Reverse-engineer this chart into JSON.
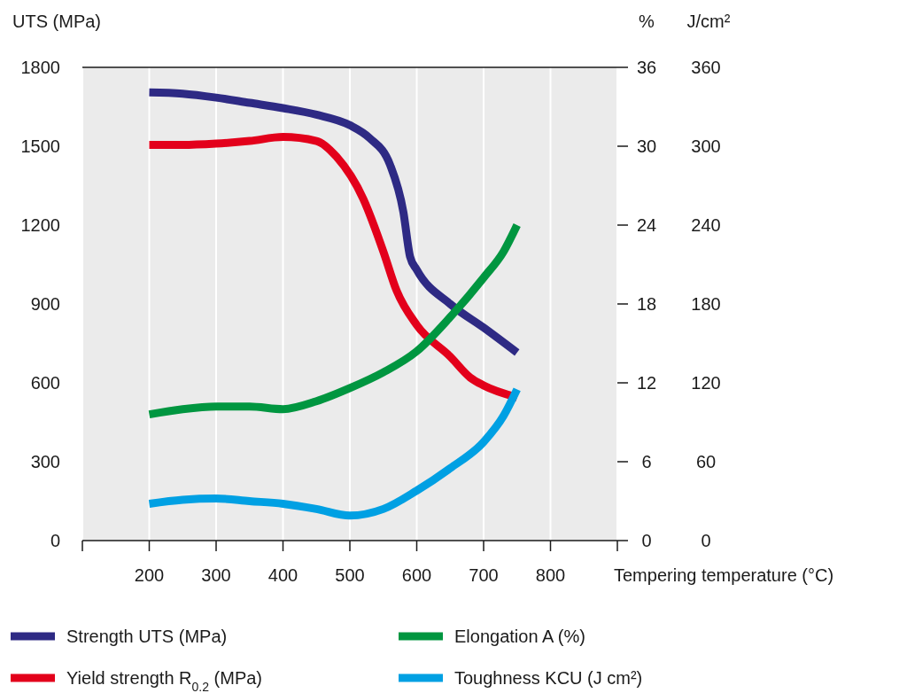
{
  "chart_data": {
    "type": "line",
    "xlabel": "Tempering temperature (°C)",
    "ylabel": "UTS (MPa)",
    "y2label": "%",
    "y3label": "J/cm²",
    "xlim": [
      100,
      900
    ],
    "xticks": [
      {
        "value": 100,
        "label": null
      },
      200,
      300,
      400,
      500,
      600,
      700,
      800,
      {
        "value": 900,
        "label": null
      }
    ],
    "ylim": [
      0,
      1800
    ],
    "yticks": [
      0,
      300,
      600,
      900,
      1200,
      1500,
      1800
    ],
    "y2lim": [
      0,
      36
    ],
    "y2ticks": [
      0,
      6,
      12,
      18,
      24,
      30,
      36
    ],
    "y3lim": [
      0,
      360
    ],
    "y3ticks": [
      0,
      60,
      120,
      180,
      240,
      300,
      360
    ],
    "grid": "x",
    "legend": "bottom",
    "line_style": "solid",
    "series": [
      {
        "name": "Strength UTS (MPa)",
        "color": "#2e2a84",
        "x": [
          200,
          250,
          300,
          350,
          400,
          450,
          500,
          530,
          560,
          580,
          590,
          600,
          650,
          700,
          750
        ],
        "values": [
          1705,
          1700,
          1685,
          1665,
          1645,
          1620,
          1580,
          1530,
          1430,
          1250,
          1080,
          1030,
          900,
          810,
          715
        ]
      },
      {
        "name": "Yield strength R$_{0.2}$ (MPa)",
        "color": "#e3001b",
        "x": [
          200,
          250,
          300,
          350,
          400,
          450,
          480,
          520,
          550,
          570,
          600,
          650,
          680,
          700,
          750
        ],
        "values": [
          1505,
          1505,
          1510,
          1520,
          1535,
          1520,
          1460,
          1300,
          1100,
          950,
          820,
          700,
          620,
          590,
          545
        ]
      },
      {
        "name": "Elongation A (%)",
        "color": "#009640",
        "axis": "y2",
        "x": [
          200,
          250,
          300,
          350,
          400,
          450,
          500,
          550,
          600,
          650,
          700,
          730,
          750
        ],
        "values": [
          9.6,
          10,
          10.2,
          10.2,
          10,
          10.6,
          11.6,
          12.8,
          14.4,
          17,
          20,
          22,
          24
        ]
      },
      {
        "name": "Toughness KCU (J cm²)",
        "color": "#00a0e3",
        "axis": "y3",
        "x": [
          200,
          250,
          300,
          350,
          400,
          450,
          500,
          550,
          600,
          650,
          700,
          730,
          750
        ],
        "values": [
          28,
          31,
          32,
          30,
          28,
          24,
          19,
          24,
          38,
          55,
          75,
          95,
          115
        ]
      }
    ]
  }
}
